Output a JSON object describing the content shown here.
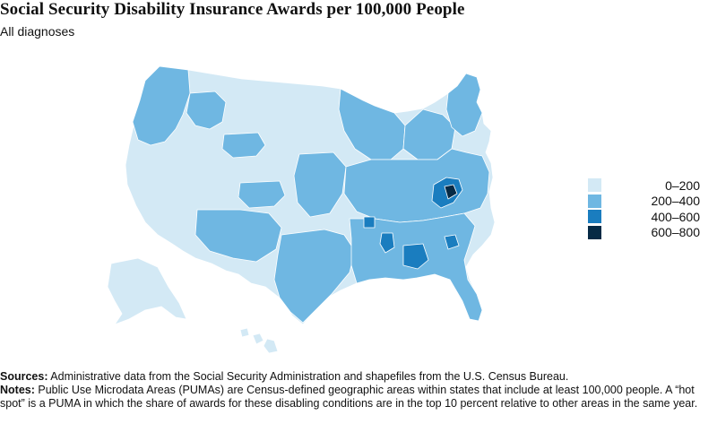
{
  "header": {
    "title": "Social Security Disability Insurance Awards per 100,000 People",
    "subtitle": "All diagnoses"
  },
  "legend": {
    "items": [
      {
        "label": "0–200",
        "color": "#d3e9f5"
      },
      {
        "label": "200–400",
        "color": "#6fb7e2"
      },
      {
        "label": "400–600",
        "color": "#1a7dbf"
      },
      {
        "label": "600–800",
        "color": "#062a45"
      }
    ]
  },
  "map": {
    "colors": {
      "low": "#d3e9f5",
      "mid": "#6fb7e2",
      "high": "#1a7dbf",
      "top": "#062a45",
      "border": "#ffffff"
    }
  },
  "footnotes": {
    "sources_label": "Sources:",
    "sources_text": " Administrative data from the Social Security Administration and shapefiles from the U.S. Census Bureau.",
    "notes_label": "Notes:",
    "notes_text": " Public Use Microdata Areas (PUMAs) are Census-defined geographic areas within states that include at least 100,000 people. A “hot spot” is a PUMA in which the share of awards for these disabling conditions are in the top 10 percent relative to other areas in the same year."
  }
}
